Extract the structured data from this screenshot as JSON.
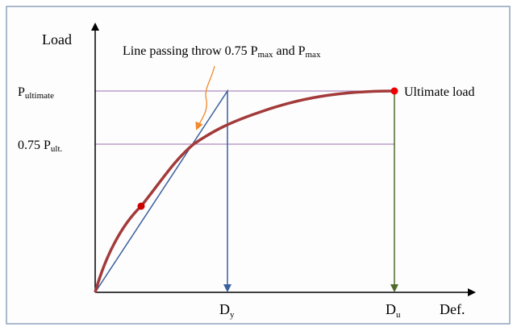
{
  "axes": {
    "y_label": "Load",
    "x_label": "Def."
  },
  "annotation": {
    "text1": "Line passing throw 0.75 P",
    "sub1": "max",
    "text2": "and P",
    "sub2": "max"
  },
  "levels": [
    {
      "main": "P",
      "sub": "ultimate"
    },
    {
      "main": "0.75 P",
      "sub": "ult."
    }
  ],
  "x_marks": [
    {
      "main": "D",
      "sub": "y"
    },
    {
      "main": "D",
      "sub": "u"
    }
  ],
  "point_label": "Ultimate load"
}
